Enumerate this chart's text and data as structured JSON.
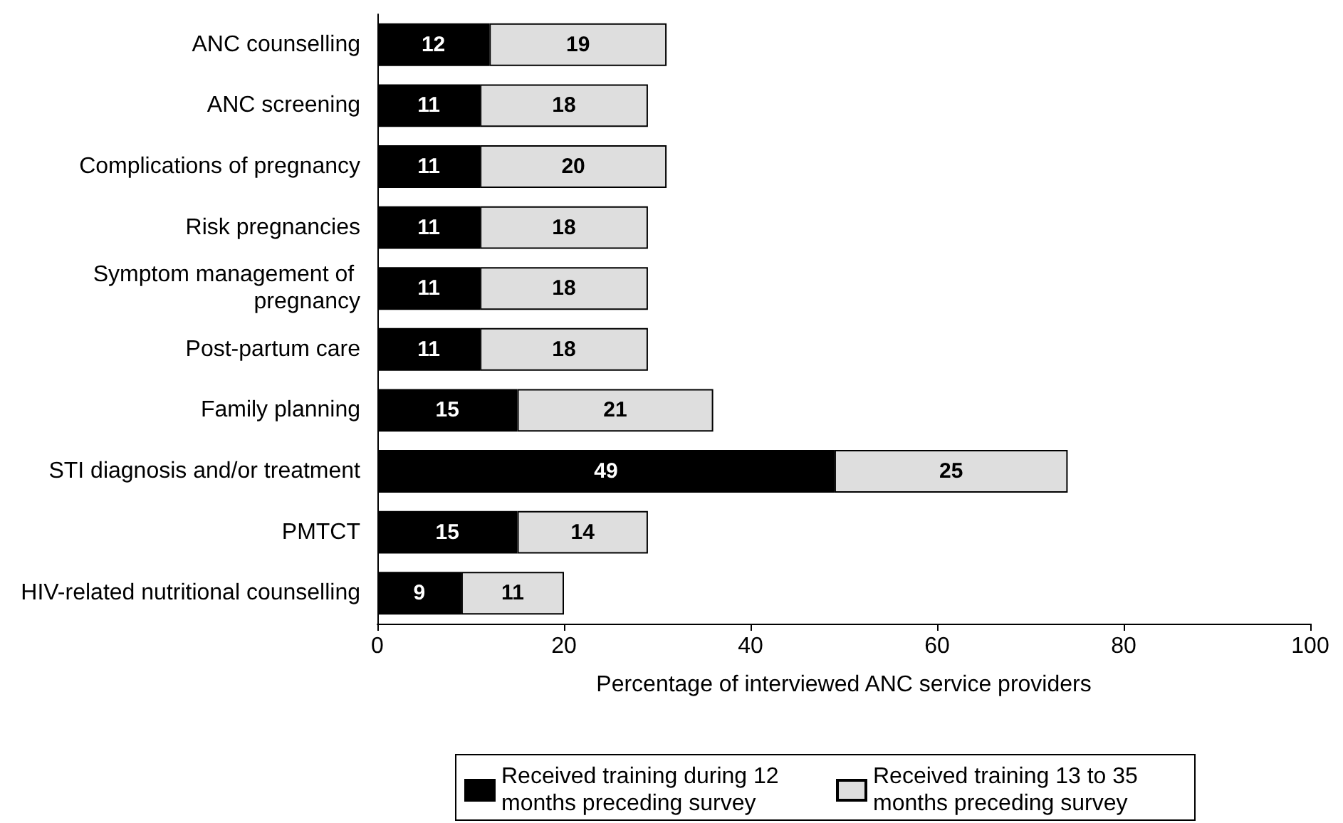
{
  "chart_data": {
    "type": "bar",
    "orientation": "horizontal",
    "stacked": true,
    "data_labels": true,
    "grid": false,
    "legend": "bottom",
    "xlabel": "Percentage of interviewed ANC service providers",
    "categories": [
      "ANC counselling",
      "ANC screening",
      "Complications of pregnancy",
      "Risk pregnancies",
      "Symptom management of pregnancy",
      "Post-partum care",
      "Family planning",
      "STI diagnosis and/or treatment",
      "PMTCT",
      "HIV-related nutritional counselling"
    ],
    "series": [
      {
        "name": "Received training during 12 months preceding survey",
        "color": "#000000",
        "values": [
          12,
          11,
          11,
          11,
          11,
          11,
          15,
          49,
          15,
          9
        ]
      },
      {
        "name": "Received training 13 to 35 months preceding survey",
        "color": "#dedede",
        "values": [
          19,
          18,
          20,
          18,
          18,
          18,
          21,
          25,
          14,
          11
        ]
      }
    ],
    "xlim": [
      0,
      100
    ],
    "xticks": [
      0,
      20,
      40,
      60,
      80,
      100
    ]
  }
}
